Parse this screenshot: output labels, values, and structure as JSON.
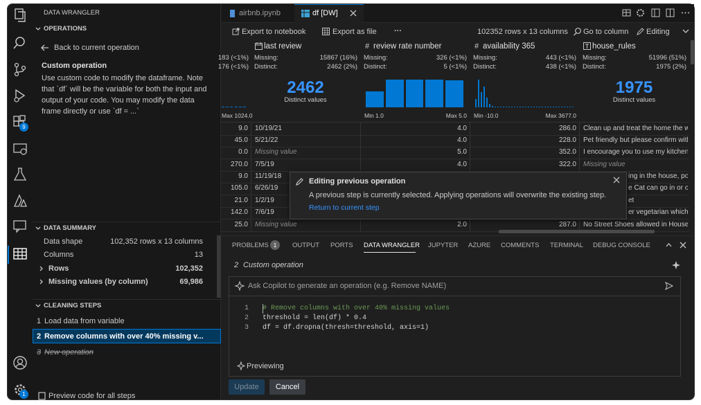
{
  "activity_bar": {
    "badges": [
      "9",
      "1"
    ]
  },
  "sidebar": {
    "title": "DATA WRANGLER",
    "operations": {
      "heading": "OPERATIONS",
      "back": "Back to current operation",
      "name": "Custom operation",
      "description": "Use custom code to modify the dataframe. Note that `df` will be the variable for both the input and output of your code. You may modify the data frame directly or use `df = ...`"
    },
    "summary": {
      "heading": "DATA SUMMARY",
      "rows": [
        [
          "Data shape",
          "102,352 rows x 13 columns"
        ],
        [
          "Columns",
          "13"
        ],
        [
          "Rows",
          "102,352"
        ],
        [
          "Missing values (by column)",
          "69,986"
        ]
      ]
    },
    "steps": {
      "heading": "CLEANING STEPS",
      "items": [
        {
          "num": "1",
          "label": "Load data from variable"
        },
        {
          "num": "2",
          "label": "Remove columns with over 40% missing v..."
        },
        {
          "num": "3",
          "label": "New operation"
        }
      ]
    },
    "preview": "Preview code for all steps"
  },
  "tabs": [
    "airbnb.ipynb",
    "df [DW]"
  ],
  "toolbar": {
    "export_notebook": "Export to notebook",
    "export_file": "Export as file",
    "more": "···",
    "shape": "102352 rows x 13 columns",
    "goto": "Go to column",
    "mode": "Editing"
  },
  "grid": {
    "partial_column": {
      "stats": [
        "183 (<1%)",
        "176 (<1%)"
      ],
      "max": "Max 1024.0",
      "histogram": [
        1,
        1,
        1,
        1,
        1,
        1
      ]
    },
    "columns": [
      {
        "name": "last review",
        "missing_label": "Missing:",
        "missing": "15867 (16%)",
        "distinct_label": "Distinct:",
        "distinct": "2462 (2%)",
        "distinct_count": "2462",
        "distinct_caption": "Distinct values"
      },
      {
        "name": "review rate number",
        "missing_label": "Missing:",
        "missing": "326 (<1%)",
        "distinct_label": "Distinct:",
        "distinct": "5 (<1%)",
        "min": "Min 1.0",
        "max": "Max 5.0",
        "histogram": [
          23,
          40,
          40,
          40,
          39
        ]
      },
      {
        "name": "availability 365",
        "missing_label": "Missing:",
        "missing": "443 (<1%)",
        "distinct_label": "Distinct:",
        "distinct": "438 (<1%)",
        "min": "Min -10.0",
        "max": "Max 3677.0",
        "histogram": [
          12,
          40,
          22,
          30,
          14,
          5,
          2,
          1,
          1,
          1,
          1,
          1,
          1,
          1,
          1,
          1,
          1,
          1,
          1,
          1,
          1,
          1,
          1,
          1,
          1,
          1,
          1,
          1,
          1,
          1,
          1,
          1,
          1,
          1,
          1,
          1
        ]
      },
      {
        "name": "house_rules",
        "missing_label": "Missing:",
        "missing": "51996 (51%)",
        "distinct_label": "Distinct:",
        "distinct": "1975 (2%)",
        "distinct_count": "1975",
        "distinct_caption": "Distinct values"
      }
    ],
    "rows": [
      [
        "9.0",
        "10/19/21",
        "4.0",
        "286.0",
        "Clean up and treat the home the way"
      ],
      [
        "45.0",
        "5/21/22",
        "4.0",
        "228.0",
        "Pet friendly but please confirm with"
      ],
      [
        "0.0",
        "Missing value",
        "5.0",
        "352.0",
        "I encourage you to use my kitchen, c"
      ],
      [
        "270.0",
        "7/5/19",
        "4.0",
        "322.0",
        "Missing value"
      ],
      [
        "9.0",
        "11/19/18",
        null,
        null,
        "ing in the house, por"
      ],
      [
        "105.0",
        "6/26/19",
        null,
        null,
        "e Cat can go in or ou"
      ],
      [
        "21.0",
        "1/2/19",
        null,
        null,
        "et"
      ],
      [
        "142.0",
        "7/6/19",
        null,
        null,
        "er vegetarian which r"
      ],
      [
        "25.0",
        "Missing value",
        "2.0",
        "287.0",
        "No Street Shoes allowed in House. N"
      ]
    ]
  },
  "popup": {
    "title": "Editing previous operation",
    "body": "A previous step is currently selected. Applying operations will overwrite the existing step.",
    "link": "Return to current step"
  },
  "panel": {
    "tabs": [
      "PROBLEMS",
      "OUTPUT",
      "PORTS",
      "DATA WRANGLER",
      "JUPYTER",
      "AZURE",
      "COMMENTS",
      "TERMINAL",
      "DEBUG CONSOLE"
    ],
    "problems_badge": "1",
    "step_num": "2",
    "step_name": "Custom operation",
    "copilot_placeholder": "Ask Copilot to generate an operation (e.g. Remove NAME)",
    "code": [
      {
        "num": "1",
        "text": "# Remove columns with over 40% missing values"
      },
      {
        "num": "2",
        "text": "threshold = len(df) * 0.4"
      },
      {
        "num": "3",
        "text": "df = df.dropna(thresh=threshold, axis=1)"
      }
    ],
    "status": "Previewing",
    "buttons": [
      "Update",
      "Cancel"
    ]
  }
}
